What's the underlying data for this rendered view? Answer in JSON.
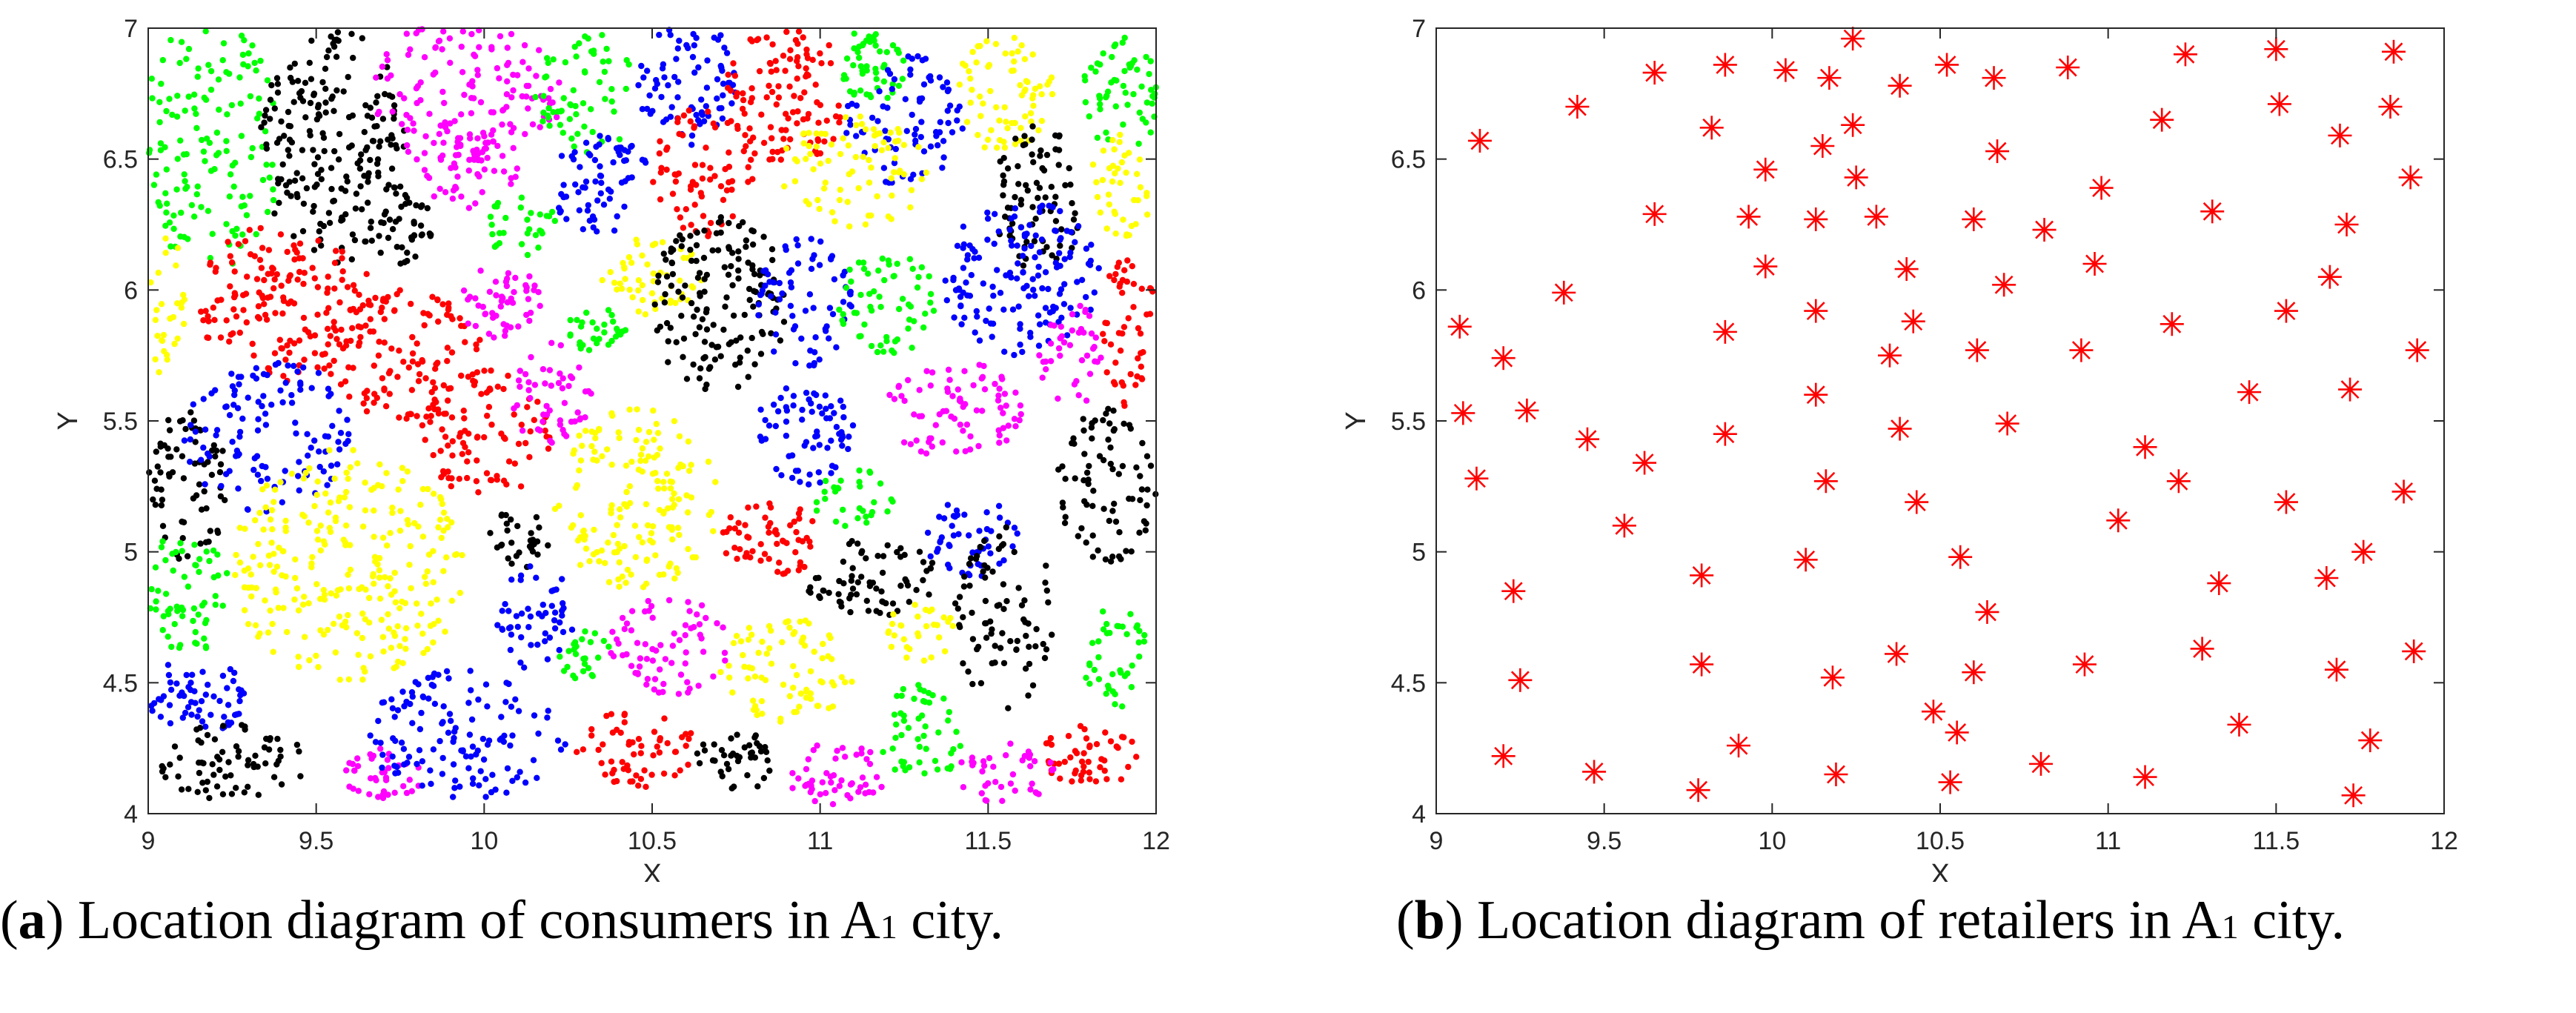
{
  "captions": {
    "a": {
      "label": "a",
      "pre": "Location diagram of consumers in A",
      "sub": "1",
      "post": " city."
    },
    "b": {
      "label": "b",
      "pre": "Location diagram of retailers in A",
      "sub": "1",
      "post": " city."
    }
  },
  "chart_data": [
    {
      "type": "scatter",
      "title": "",
      "xlabel": "X",
      "ylabel": "Y",
      "xlim": [
        9,
        12
      ],
      "ylim": [
        4,
        7
      ],
      "xticks": [
        "9",
        "9.5",
        "10",
        "10.5",
        "11",
        "11.5",
        "12"
      ],
      "yticks": [
        "4",
        "4.5",
        "5",
        "5.5",
        "6",
        "6.5",
        "7"
      ],
      "marker": "dot",
      "note_colors": [
        "#00ff00",
        "#000000",
        "#ff00ff",
        "#0000ff",
        "#ff0000",
        "#ffff00"
      ],
      "regions": [
        {
          "color": "#00ff00",
          "x": 9.18,
          "y": 6.55,
          "rx": 0.22,
          "ry": 0.48,
          "n": 150
        },
        {
          "color": "#000000",
          "x": 9.55,
          "y": 6.55,
          "rx": 0.22,
          "ry": 0.45,
          "n": 200
        },
        {
          "color": "#ff00ff",
          "x": 9.95,
          "y": 6.75,
          "rx": 0.28,
          "ry": 0.3,
          "n": 150
        },
        {
          "color": "#00ff00",
          "x": 10.3,
          "y": 6.75,
          "rx": 0.15,
          "ry": 0.25,
          "n": 60
        },
        {
          "color": "#0000ff",
          "x": 10.6,
          "y": 6.8,
          "rx": 0.15,
          "ry": 0.25,
          "n": 80
        },
        {
          "color": "#ff0000",
          "x": 10.9,
          "y": 6.75,
          "rx": 0.18,
          "ry": 0.28,
          "n": 110
        },
        {
          "color": "#00ff00",
          "x": 11.15,
          "y": 6.85,
          "rx": 0.12,
          "ry": 0.15,
          "n": 50
        },
        {
          "color": "#0000ff",
          "x": 11.25,
          "y": 6.65,
          "rx": 0.18,
          "ry": 0.25,
          "n": 80
        },
        {
          "color": "#ffff00",
          "x": 11.55,
          "y": 6.75,
          "rx": 0.15,
          "ry": 0.25,
          "n": 70
        },
        {
          "color": "#000000",
          "x": 11.65,
          "y": 6.35,
          "rx": 0.13,
          "ry": 0.3,
          "n": 80
        },
        {
          "color": "#00ff00",
          "x": 11.9,
          "y": 6.75,
          "rx": 0.12,
          "ry": 0.22,
          "n": 60
        },
        {
          "color": "#ffff00",
          "x": 11.9,
          "y": 6.4,
          "rx": 0.1,
          "ry": 0.2,
          "n": 40
        },
        {
          "color": "#ff00ff",
          "x": 9.95,
          "y": 6.45,
          "rx": 0.15,
          "ry": 0.15,
          "n": 50
        },
        {
          "color": "#00ff00",
          "x": 10.1,
          "y": 6.25,
          "rx": 0.12,
          "ry": 0.12,
          "n": 30
        },
        {
          "color": "#0000ff",
          "x": 10.35,
          "y": 6.4,
          "rx": 0.15,
          "ry": 0.2,
          "n": 70
        },
        {
          "color": "#ff0000",
          "x": 10.65,
          "y": 6.45,
          "rx": 0.15,
          "ry": 0.25,
          "n": 70
        },
        {
          "color": "#ffff00",
          "x": 11.1,
          "y": 6.45,
          "rx": 0.22,
          "ry": 0.22,
          "n": 80
        },
        {
          "color": "#0000ff",
          "x": 11.6,
          "y": 6.05,
          "rx": 0.25,
          "ry": 0.3,
          "n": 150
        },
        {
          "color": "#ff0000",
          "x": 9.4,
          "y": 5.95,
          "rx": 0.27,
          "ry": 0.3,
          "n": 160
        },
        {
          "color": "#ffff00",
          "x": 9.05,
          "y": 5.95,
          "rx": 0.06,
          "ry": 0.3,
          "n": 30
        },
        {
          "color": "#000000",
          "x": 9.75,
          "y": 6.25,
          "rx": 0.1,
          "ry": 0.15,
          "n": 40
        },
        {
          "color": "#ff0000",
          "x": 9.75,
          "y": 5.75,
          "rx": 0.25,
          "ry": 0.25,
          "n": 120
        },
        {
          "color": "#ff00ff",
          "x": 10.05,
          "y": 5.95,
          "rx": 0.12,
          "ry": 0.15,
          "n": 50
        },
        {
          "color": "#ffff00",
          "x": 10.5,
          "y": 6.05,
          "rx": 0.15,
          "ry": 0.15,
          "n": 50
        },
        {
          "color": "#000000",
          "x": 10.7,
          "y": 5.95,
          "rx": 0.2,
          "ry": 0.35,
          "n": 150
        },
        {
          "color": "#0000ff",
          "x": 10.95,
          "y": 5.95,
          "rx": 0.15,
          "ry": 0.25,
          "n": 70
        },
        {
          "color": "#00ff00",
          "x": 11.2,
          "y": 5.95,
          "rx": 0.15,
          "ry": 0.2,
          "n": 60
        },
        {
          "color": "#ff00ff",
          "x": 11.75,
          "y": 5.75,
          "rx": 0.1,
          "ry": 0.2,
          "n": 40
        },
        {
          "color": "#ff0000",
          "x": 11.92,
          "y": 5.85,
          "rx": 0.08,
          "ry": 0.3,
          "n": 50
        },
        {
          "color": "#000000",
          "x": 9.12,
          "y": 5.25,
          "rx": 0.12,
          "ry": 0.3,
          "n": 70
        },
        {
          "color": "#0000ff",
          "x": 9.35,
          "y": 5.45,
          "rx": 0.25,
          "ry": 0.3,
          "n": 120
        },
        {
          "color": "#ff0000",
          "x": 10.0,
          "y": 5.45,
          "rx": 0.2,
          "ry": 0.25,
          "n": 90
        },
        {
          "color": "#ff00ff",
          "x": 10.2,
          "y": 5.6,
          "rx": 0.12,
          "ry": 0.2,
          "n": 50
        },
        {
          "color": "#00ff00",
          "x": 10.35,
          "y": 5.85,
          "rx": 0.1,
          "ry": 0.1,
          "n": 30
        },
        {
          "color": "#ffff00",
          "x": 10.45,
          "y": 5.2,
          "rx": 0.25,
          "ry": 0.35,
          "n": 160
        },
        {
          "color": "#0000ff",
          "x": 10.95,
          "y": 5.45,
          "rx": 0.15,
          "ry": 0.2,
          "n": 70
        },
        {
          "color": "#ff00ff",
          "x": 11.4,
          "y": 5.55,
          "rx": 0.2,
          "ry": 0.2,
          "n": 80
        },
        {
          "color": "#000000",
          "x": 11.85,
          "y": 5.25,
          "rx": 0.15,
          "ry": 0.3,
          "n": 80
        },
        {
          "color": "#00ff00",
          "x": 9.12,
          "y": 4.85,
          "rx": 0.12,
          "ry": 0.25,
          "n": 60
        },
        {
          "color": "#ffff00",
          "x": 9.6,
          "y": 4.95,
          "rx": 0.35,
          "ry": 0.45,
          "n": 260
        },
        {
          "color": "#000000",
          "x": 10.1,
          "y": 5.05,
          "rx": 0.1,
          "ry": 0.12,
          "n": 30
        },
        {
          "color": "#ff0000",
          "x": 10.85,
          "y": 5.05,
          "rx": 0.15,
          "ry": 0.15,
          "n": 60
        },
        {
          "color": "#00ff00",
          "x": 11.1,
          "y": 5.2,
          "rx": 0.12,
          "ry": 0.12,
          "n": 30
        },
        {
          "color": "#000000",
          "x": 11.15,
          "y": 4.9,
          "rx": 0.2,
          "ry": 0.15,
          "n": 70
        },
        {
          "color": "#0000ff",
          "x": 11.45,
          "y": 5.05,
          "rx": 0.15,
          "ry": 0.15,
          "n": 50
        },
        {
          "color": "#000000",
          "x": 11.55,
          "y": 4.75,
          "rx": 0.15,
          "ry": 0.35,
          "n": 80
        },
        {
          "color": "#00ff00",
          "x": 11.88,
          "y": 4.6,
          "rx": 0.1,
          "ry": 0.2,
          "n": 40
        },
        {
          "color": "#ff0000",
          "x": 11.8,
          "y": 4.22,
          "rx": 0.15,
          "ry": 0.12,
          "n": 50
        },
        {
          "color": "#0000ff",
          "x": 9.15,
          "y": 4.45,
          "rx": 0.15,
          "ry": 0.15,
          "n": 60
        },
        {
          "color": "#000000",
          "x": 9.25,
          "y": 4.2,
          "rx": 0.22,
          "ry": 0.15,
          "n": 70
        },
        {
          "color": "#ff00ff",
          "x": 9.7,
          "y": 4.15,
          "rx": 0.12,
          "ry": 0.1,
          "n": 40
        },
        {
          "color": "#0000ff",
          "x": 9.95,
          "y": 4.3,
          "rx": 0.3,
          "ry": 0.25,
          "n": 130
        },
        {
          "color": "#0000ff",
          "x": 10.15,
          "y": 4.75,
          "rx": 0.12,
          "ry": 0.2,
          "n": 50
        },
        {
          "color": "#00ff00",
          "x": 10.3,
          "y": 4.6,
          "rx": 0.08,
          "ry": 0.1,
          "n": 25
        },
        {
          "color": "#ff00ff",
          "x": 10.55,
          "y": 4.65,
          "rx": 0.18,
          "ry": 0.2,
          "n": 70
        },
        {
          "color": "#ff0000",
          "x": 10.45,
          "y": 4.25,
          "rx": 0.18,
          "ry": 0.15,
          "n": 60
        },
        {
          "color": "#000000",
          "x": 10.75,
          "y": 4.2,
          "rx": 0.12,
          "ry": 0.12,
          "n": 40
        },
        {
          "color": "#ffff00",
          "x": 10.9,
          "y": 4.55,
          "rx": 0.2,
          "ry": 0.2,
          "n": 80
        },
        {
          "color": "#ff00ff",
          "x": 11.05,
          "y": 4.15,
          "rx": 0.15,
          "ry": 0.12,
          "n": 50
        },
        {
          "color": "#00ff00",
          "x": 11.3,
          "y": 4.3,
          "rx": 0.12,
          "ry": 0.2,
          "n": 50
        },
        {
          "color": "#ff00ff",
          "x": 11.55,
          "y": 4.15,
          "rx": 0.15,
          "ry": 0.12,
          "n": 40
        },
        {
          "color": "#ffff00",
          "x": 11.3,
          "y": 4.7,
          "rx": 0.12,
          "ry": 0.12,
          "n": 30
        }
      ]
    },
    {
      "type": "scatter",
      "title": "",
      "xlabel": "X",
      "ylabel": "Y",
      "xlim": [
        9,
        12
      ],
      "ylim": [
        4,
        7
      ],
      "xticks": [
        "9",
        "9.5",
        "10",
        "10.5",
        "11",
        "11.5",
        "12"
      ],
      "yticks": [
        "4",
        "4.5",
        "5",
        "5.5",
        "6",
        "6.5",
        "7"
      ],
      "marker": "asterisk",
      "color": "#ff0000",
      "points": [
        [
          9.13,
          6.57
        ],
        [
          9.42,
          6.7
        ],
        [
          9.65,
          6.83
        ],
        [
          9.86,
          6.86
        ],
        [
          10.04,
          6.84
        ],
        [
          10.17,
          6.81
        ],
        [
          10.24,
          6.96
        ],
        [
          10.38,
          6.78
        ],
        [
          10.52,
          6.86
        ],
        [
          10.66,
          6.81
        ],
        [
          10.88,
          6.85
        ],
        [
          11.23,
          6.9
        ],
        [
          11.5,
          6.92
        ],
        [
          11.85,
          6.91
        ],
        [
          9.82,
          6.62
        ],
        [
          9.98,
          6.46
        ],
        [
          10.15,
          6.55
        ],
        [
          10.24,
          6.63
        ],
        [
          10.25,
          6.43
        ],
        [
          11.16,
          6.65
        ],
        [
          11.51,
          6.71
        ],
        [
          11.69,
          6.59
        ],
        [
          11.84,
          6.7
        ],
        [
          11.9,
          6.43
        ],
        [
          10.67,
          6.53
        ],
        [
          10.98,
          6.39
        ],
        [
          9.65,
          6.29
        ],
        [
          9.93,
          6.28
        ],
        [
          10.13,
          6.27
        ],
        [
          10.31,
          6.28
        ],
        [
          10.6,
          6.27
        ],
        [
          10.81,
          6.23
        ],
        [
          11.31,
          6.3
        ],
        [
          11.71,
          6.25
        ],
        [
          9.98,
          6.09
        ],
        [
          10.4,
          6.08
        ],
        [
          10.69,
          6.02
        ],
        [
          10.96,
          6.1
        ],
        [
          11.66,
          6.05
        ],
        [
          9.38,
          5.99
        ],
        [
          9.07,
          5.86
        ],
        [
          9.86,
          5.84
        ],
        [
          10.13,
          5.92
        ],
        [
          10.42,
          5.88
        ],
        [
          11.19,
          5.87
        ],
        [
          11.53,
          5.92
        ],
        [
          9.2,
          5.74
        ],
        [
          10.35,
          5.75
        ],
        [
          10.61,
          5.77
        ],
        [
          10.92,
          5.77
        ],
        [
          11.92,
          5.77
        ],
        [
          9.08,
          5.53
        ],
        [
          9.27,
          5.54
        ],
        [
          9.45,
          5.43
        ],
        [
          9.86,
          5.45
        ],
        [
          10.13,
          5.6
        ],
        [
          10.38,
          5.47
        ],
        [
          10.7,
          5.49
        ],
        [
          11.42,
          5.61
        ],
        [
          11.72,
          5.62
        ],
        [
          11.11,
          5.4
        ],
        [
          9.12,
          5.28
        ],
        [
          9.62,
          5.34
        ],
        [
          9.56,
          5.1
        ],
        [
          10.16,
          5.27
        ],
        [
          10.43,
          5.19
        ],
        [
          11.03,
          5.12
        ],
        [
          11.21,
          5.27
        ],
        [
          11.53,
          5.19
        ],
        [
          11.88,
          5.23
        ],
        [
          9.23,
          4.85
        ],
        [
          9.79,
          4.91
        ],
        [
          10.1,
          4.97
        ],
        [
          10.56,
          4.98
        ],
        [
          10.64,
          4.77
        ],
        [
          11.33,
          4.88
        ],
        [
          11.65,
          4.9
        ],
        [
          11.76,
          5.0
        ],
        [
          9.25,
          4.51
        ],
        [
          9.79,
          4.57
        ],
        [
          10.18,
          4.52
        ],
        [
          10.37,
          4.61
        ],
        [
          10.6,
          4.54
        ],
        [
          10.93,
          4.57
        ],
        [
          11.28,
          4.63
        ],
        [
          11.68,
          4.55
        ],
        [
          11.91,
          4.62
        ],
        [
          9.2,
          4.22
        ],
        [
          9.47,
          4.16
        ],
        [
          9.78,
          4.09
        ],
        [
          9.9,
          4.26
        ],
        [
          10.19,
          4.15
        ],
        [
          10.48,
          4.39
        ],
        [
          10.55,
          4.31
        ],
        [
          10.53,
          4.12
        ],
        [
          10.8,
          4.19
        ],
        [
          11.11,
          4.14
        ],
        [
          11.39,
          4.34
        ],
        [
          11.73,
          4.07
        ],
        [
          11.78,
          4.28
        ]
      ]
    }
  ]
}
